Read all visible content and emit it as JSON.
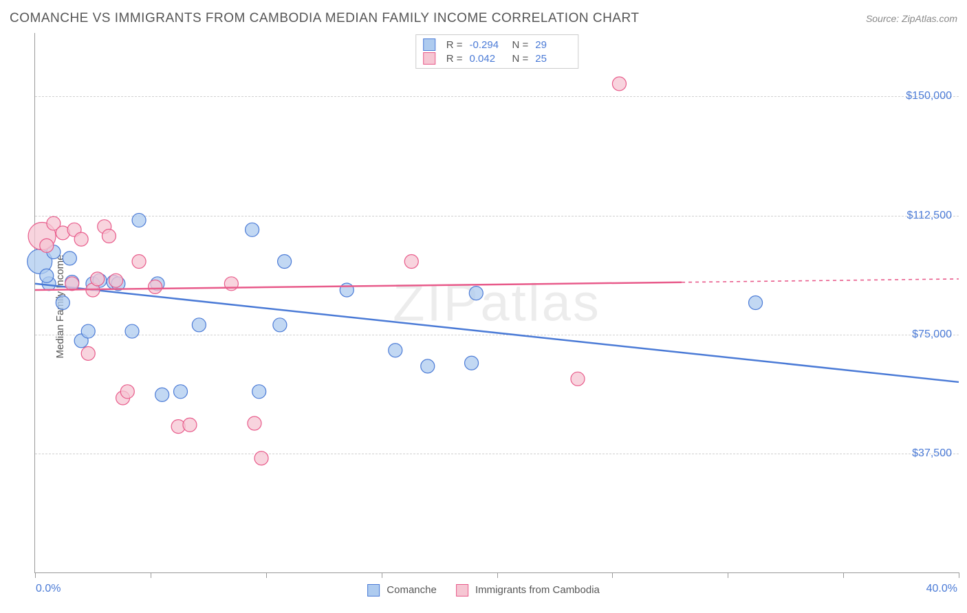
{
  "title": "COMANCHE VS IMMIGRANTS FROM CAMBODIA MEDIAN FAMILY INCOME CORRELATION CHART",
  "source": "Source: ZipAtlas.com",
  "watermark": "ZIPatlas",
  "ylabel": "Median Family Income",
  "chart": {
    "type": "scatter",
    "background_color": "#ffffff",
    "grid_color": "#d0d0d0",
    "xlim": [
      0,
      40
    ],
    "ylim": [
      0,
      170000
    ],
    "xtick_positions": [
      0,
      5,
      10,
      15,
      20,
      25,
      30,
      35,
      40
    ],
    "xtick_labels_shown": {
      "min": "0.0%",
      "max": "40.0%"
    },
    "ytick_positions": [
      37500,
      75000,
      112500,
      150000
    ],
    "ytick_labels": [
      "$37,500",
      "$75,000",
      "$112,500",
      "$150,000"
    ],
    "title_fontsize": 19,
    "ytick_fontsize": 16,
    "label_fontsize": 15,
    "series": [
      {
        "name": "Comanche",
        "color_fill": "#aecbef",
        "color_stroke": "#4a7ad6",
        "marker_radius": 10,
        "R": "-0.294",
        "N": "29",
        "trend": {
          "x1": 0,
          "y1": 91000,
          "x2": 40,
          "y2": 60000,
          "solid_until_x": 40
        },
        "points": [
          {
            "x": 0.2,
            "y": 98000,
            "r": 18
          },
          {
            "x": 0.8,
            "y": 101000
          },
          {
            "x": 0.6,
            "y": 91000
          },
          {
            "x": 0.5,
            "y": 93500
          },
          {
            "x": 1.2,
            "y": 85000
          },
          {
            "x": 1.6,
            "y": 91500
          },
          {
            "x": 1.5,
            "y": 99000
          },
          {
            "x": 2.0,
            "y": 73000
          },
          {
            "x": 2.3,
            "y": 76000
          },
          {
            "x": 2.5,
            "y": 91000
          },
          {
            "x": 2.8,
            "y": 92000
          },
          {
            "x": 3.4,
            "y": 91500
          },
          {
            "x": 3.6,
            "y": 91000
          },
          {
            "x": 4.2,
            "y": 76000
          },
          {
            "x": 4.5,
            "y": 111000
          },
          {
            "x": 5.3,
            "y": 91000
          },
          {
            "x": 5.5,
            "y": 56000
          },
          {
            "x": 6.3,
            "y": 57000
          },
          {
            "x": 7.1,
            "y": 78000
          },
          {
            "x": 9.4,
            "y": 108000
          },
          {
            "x": 9.7,
            "y": 57000
          },
          {
            "x": 10.6,
            "y": 78000
          },
          {
            "x": 10.8,
            "y": 98000
          },
          {
            "x": 13.5,
            "y": 89000
          },
          {
            "x": 15.6,
            "y": 70000
          },
          {
            "x": 17.0,
            "y": 65000
          },
          {
            "x": 18.9,
            "y": 66000
          },
          {
            "x": 19.1,
            "y": 88000
          },
          {
            "x": 31.2,
            "y": 85000
          }
        ]
      },
      {
        "name": "Immigrants from Cambodia",
        "color_fill": "#f6c6d3",
        "color_stroke": "#e85a8a",
        "marker_radius": 10,
        "R": "0.042",
        "N": "25",
        "trend": {
          "x1": 0,
          "y1": 89000,
          "x2": 40,
          "y2": 92500,
          "solid_until_x": 28
        },
        "points": [
          {
            "x": 0.3,
            "y": 106000,
            "r": 20
          },
          {
            "x": 0.5,
            "y": 103000
          },
          {
            "x": 0.8,
            "y": 110000
          },
          {
            "x": 1.2,
            "y": 107000
          },
          {
            "x": 1.7,
            "y": 108000
          },
          {
            "x": 1.6,
            "y": 91000
          },
          {
            "x": 2.0,
            "y": 105000
          },
          {
            "x": 2.3,
            "y": 69000
          },
          {
            "x": 2.5,
            "y": 89000
          },
          {
            "x": 2.7,
            "y": 92500
          },
          {
            "x": 3.0,
            "y": 109000
          },
          {
            "x": 3.2,
            "y": 106000
          },
          {
            "x": 3.5,
            "y": 92000
          },
          {
            "x": 3.8,
            "y": 55000
          },
          {
            "x": 4.0,
            "y": 57000
          },
          {
            "x": 4.5,
            "y": 98000
          },
          {
            "x": 5.2,
            "y": 90000
          },
          {
            "x": 6.2,
            "y": 46000
          },
          {
            "x": 6.7,
            "y": 46500
          },
          {
            "x": 8.5,
            "y": 91000
          },
          {
            "x": 9.5,
            "y": 47000
          },
          {
            "x": 9.8,
            "y": 36000
          },
          {
            "x": 16.3,
            "y": 98000
          },
          {
            "x": 23.5,
            "y": 61000
          },
          {
            "x": 25.3,
            "y": 154000
          }
        ]
      }
    ]
  }
}
